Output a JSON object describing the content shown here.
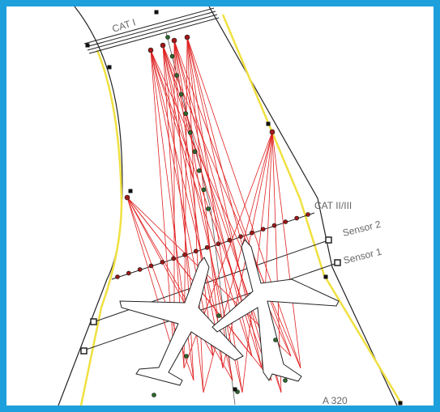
{
  "labels": {
    "cat_1": "CAT I",
    "cat_2_3": "CAT II/III",
    "sensor_2": "Sensor 2",
    "sensor_1": "Sensor 1",
    "aircraft": "A 320"
  }
}
